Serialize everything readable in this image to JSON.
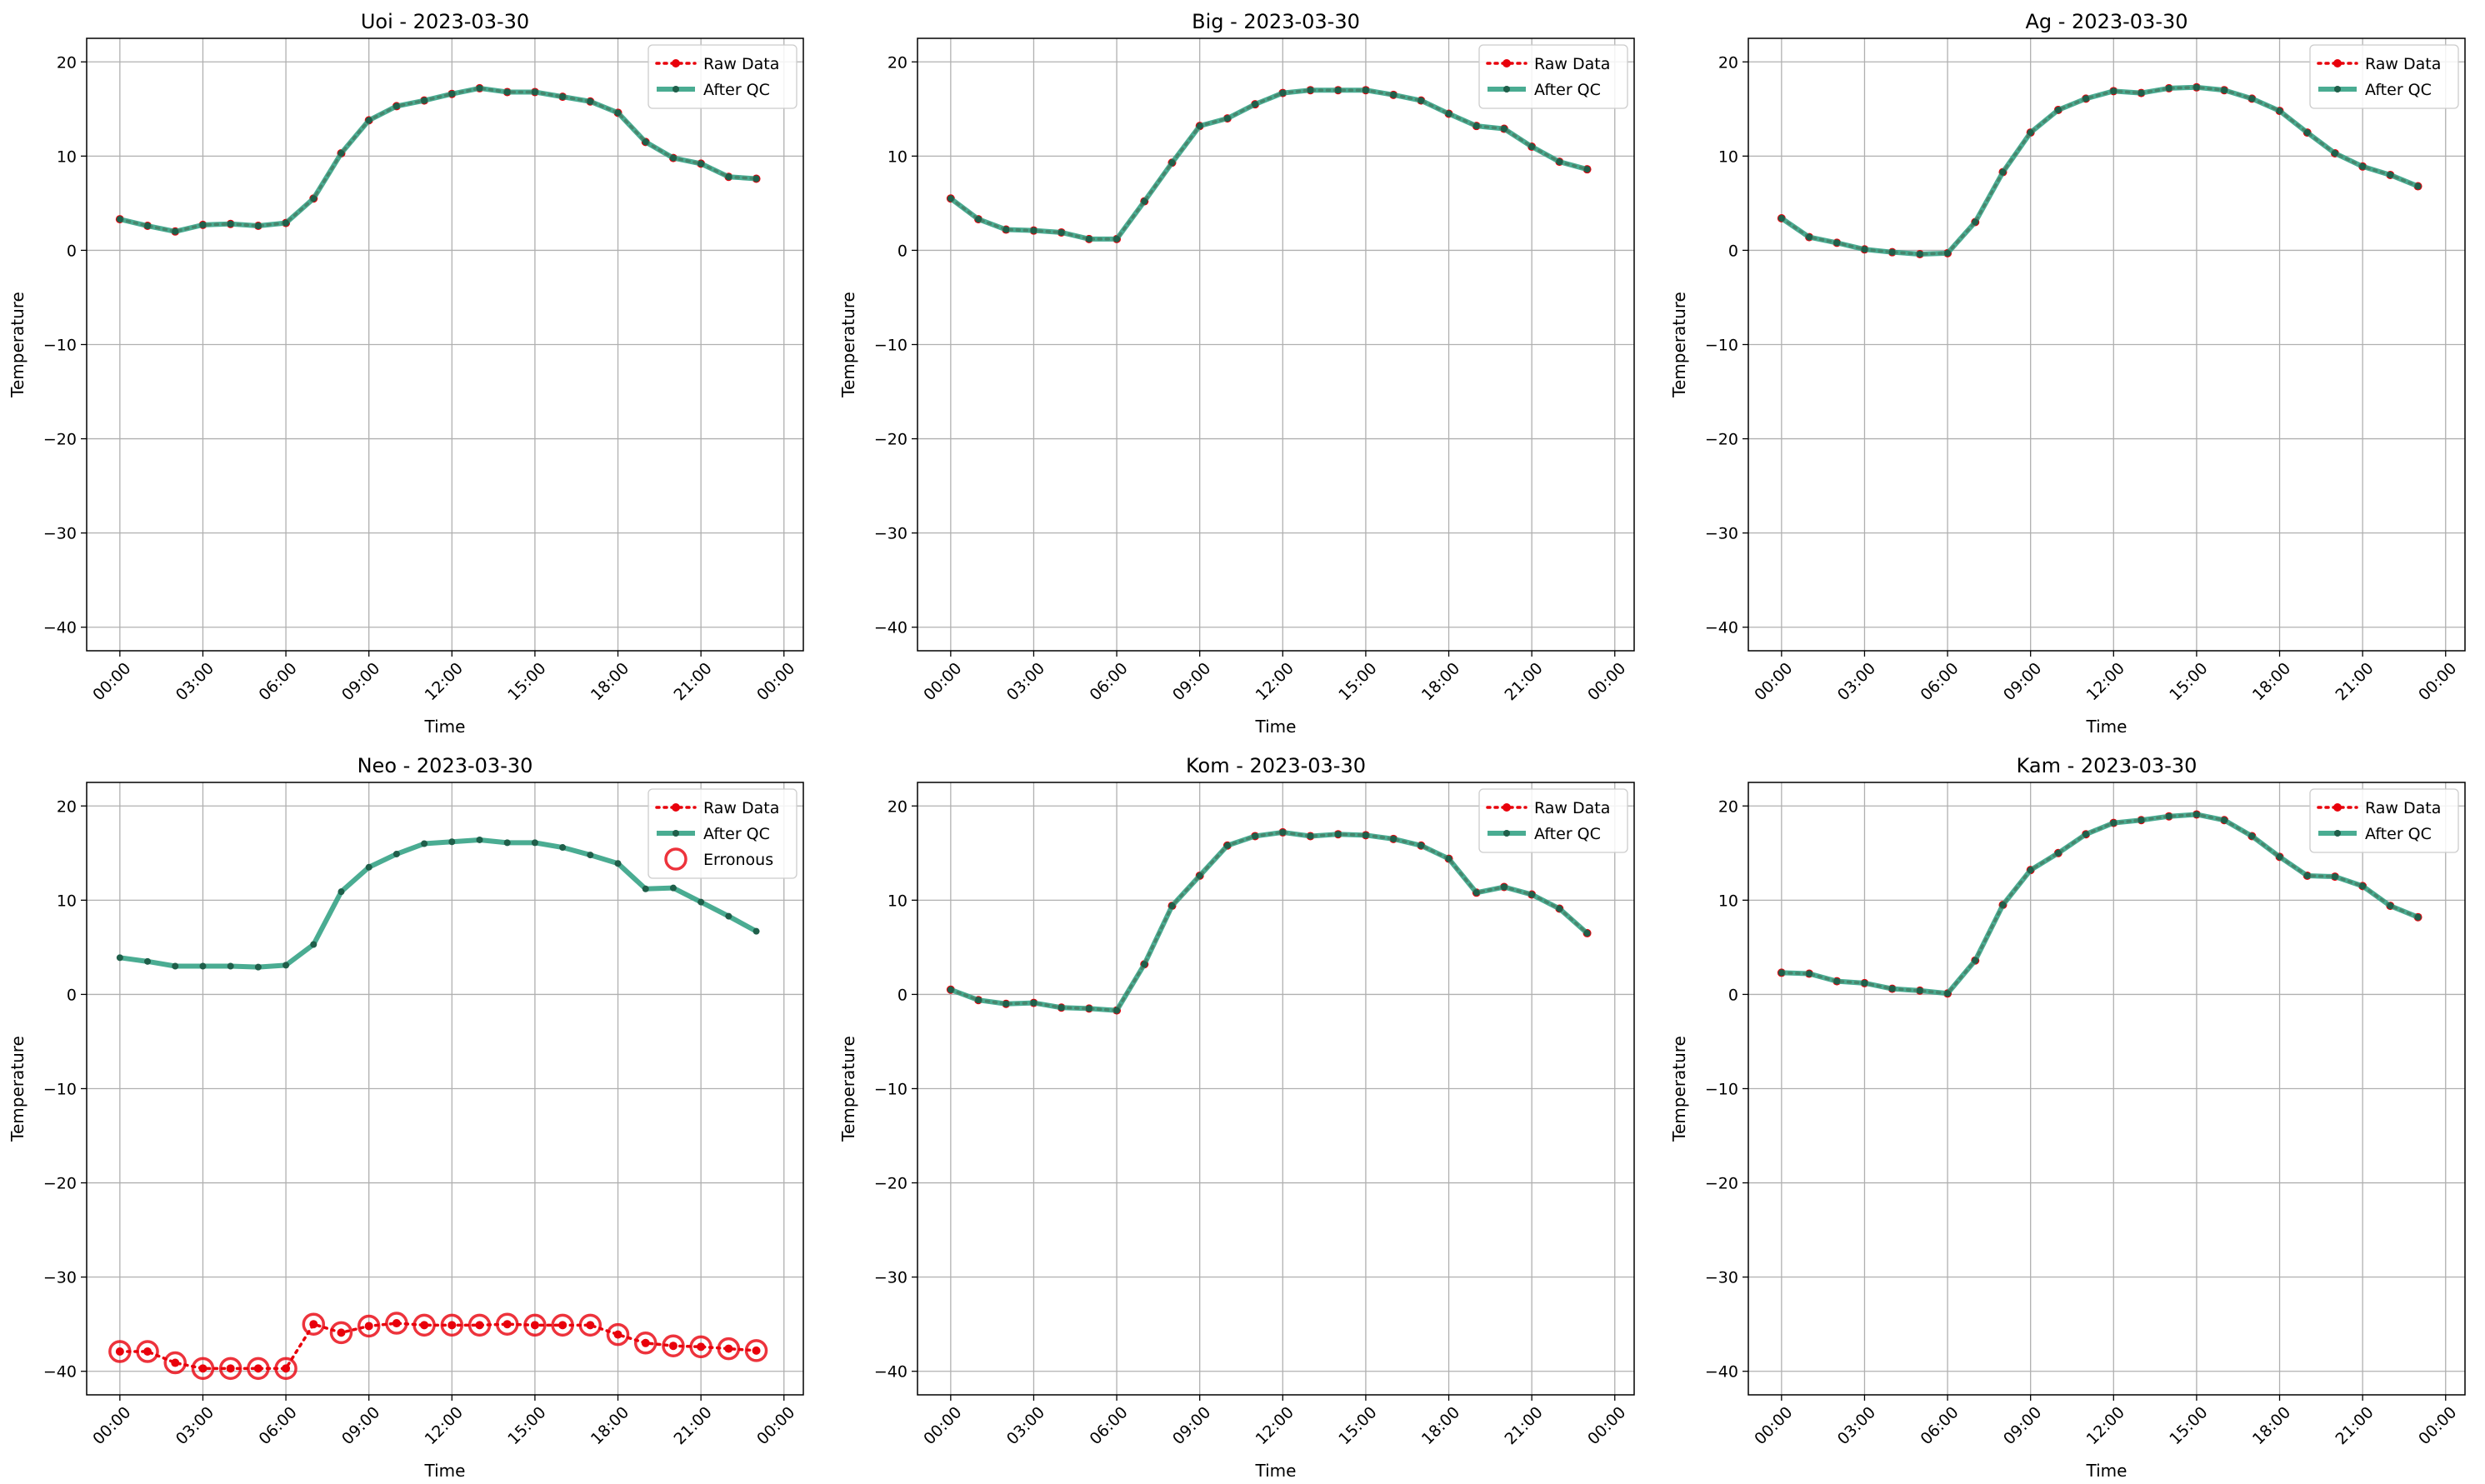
{
  "colors": {
    "raw": "#e8000b",
    "qc": "#2a9d7f",
    "qc_marker": "#1f5f4a",
    "erroneous": "#e8000b",
    "grid": "#b0b0b0"
  },
  "chart_data": [
    {
      "type": "line",
      "title": "Uoi - 2023-03-30",
      "xlabel": "Time",
      "ylabel": "Temperature",
      "x_hours": [
        0,
        1,
        2,
        3,
        4,
        5,
        6,
        7,
        8,
        9,
        10,
        11,
        12,
        13,
        14,
        15,
        16,
        17,
        18,
        19,
        20,
        21,
        22,
        23
      ],
      "xticks": [
        "00:00",
        "03:00",
        "06:00",
        "09:00",
        "12:00",
        "15:00",
        "18:00",
        "21:00",
        "00:00"
      ],
      "yticks": [
        "20",
        "10",
        "0",
        "−10",
        "−20",
        "−30",
        "−40"
      ],
      "ylim": [
        -42.5,
        22.5
      ],
      "grid": true,
      "legend_position": "top-right",
      "series": [
        {
          "name": "Raw Data",
          "style": "dotted",
          "values": [
            3.3,
            2.6,
            2.0,
            2.7,
            2.8,
            2.6,
            2.9,
            5.5,
            10.3,
            13.8,
            15.3,
            15.9,
            16.6,
            17.2,
            16.8,
            16.8,
            16.3,
            15.8,
            14.6,
            11.5,
            9.8,
            9.2,
            7.8,
            7.6
          ]
        },
        {
          "name": "After QC",
          "style": "solid",
          "values": [
            3.3,
            2.6,
            2.0,
            2.7,
            2.8,
            2.6,
            2.9,
            5.5,
            10.3,
            13.8,
            15.3,
            15.9,
            16.6,
            17.2,
            16.8,
            16.8,
            16.3,
            15.8,
            14.6,
            11.5,
            9.8,
            9.2,
            7.8,
            7.6
          ]
        }
      ]
    },
    {
      "type": "line",
      "title": "Big - 2023-03-30",
      "xlabel": "Time",
      "ylabel": "Temperature",
      "x_hours": [
        0,
        1,
        2,
        3,
        4,
        5,
        6,
        7,
        8,
        9,
        10,
        11,
        12,
        13,
        14,
        15,
        16,
        17,
        18,
        19,
        20,
        21,
        22,
        23
      ],
      "xticks": [
        "00:00",
        "03:00",
        "06:00",
        "09:00",
        "12:00",
        "15:00",
        "18:00",
        "21:00",
        "00:00"
      ],
      "yticks": [
        "20",
        "10",
        "0",
        "−10",
        "−20",
        "−30",
        "−40"
      ],
      "ylim": [
        -42.5,
        22.5
      ],
      "grid": true,
      "legend_position": "top-right",
      "series": [
        {
          "name": "Raw Data",
          "style": "dotted",
          "values": [
            5.5,
            3.3,
            2.2,
            2.1,
            1.9,
            1.2,
            1.2,
            5.2,
            9.3,
            13.2,
            14.0,
            15.5,
            16.7,
            17.0,
            17.0,
            17.0,
            16.5,
            15.9,
            14.5,
            13.2,
            12.9,
            11.0,
            9.4,
            8.6
          ]
        },
        {
          "name": "After QC",
          "style": "solid",
          "values": [
            5.5,
            3.3,
            2.2,
            2.1,
            1.9,
            1.2,
            1.2,
            5.2,
            9.3,
            13.2,
            14.0,
            15.5,
            16.7,
            17.0,
            17.0,
            17.0,
            16.5,
            15.9,
            14.5,
            13.2,
            12.9,
            11.0,
            9.4,
            8.6
          ]
        }
      ]
    },
    {
      "type": "line",
      "title": "Ag - 2023-03-30",
      "xlabel": "Time",
      "ylabel": "Temperature",
      "x_hours": [
        0,
        1,
        2,
        3,
        4,
        5,
        6,
        7,
        8,
        9,
        10,
        11,
        12,
        13,
        14,
        15,
        16,
        17,
        18,
        19,
        20,
        21,
        22,
        23
      ],
      "xticks": [
        "00:00",
        "03:00",
        "06:00",
        "09:00",
        "12:00",
        "15:00",
        "18:00",
        "21:00",
        "00:00"
      ],
      "yticks": [
        "20",
        "10",
        "0",
        "−10",
        "−20",
        "−30",
        "−40"
      ],
      "ylim": [
        -42.5,
        22.5
      ],
      "grid": true,
      "legend_position": "top-right",
      "series": [
        {
          "name": "Raw Data",
          "style": "dotted",
          "values": [
            3.4,
            1.4,
            0.8,
            0.1,
            -0.2,
            -0.4,
            -0.3,
            3.0,
            8.3,
            12.5,
            14.9,
            16.1,
            16.9,
            16.7,
            17.2,
            17.3,
            17.0,
            16.1,
            14.8,
            12.5,
            10.3,
            8.9,
            8.0,
            6.8
          ]
        },
        {
          "name": "After QC",
          "style": "solid",
          "values": [
            3.4,
            1.4,
            0.8,
            0.1,
            -0.2,
            -0.4,
            -0.3,
            3.0,
            8.3,
            12.5,
            14.9,
            16.1,
            16.9,
            16.7,
            17.2,
            17.3,
            17.0,
            16.1,
            14.8,
            12.5,
            10.3,
            8.9,
            8.0,
            6.8
          ]
        }
      ]
    },
    {
      "type": "line",
      "title": "Neo - 2023-03-30",
      "xlabel": "Time",
      "ylabel": "Temperature",
      "x_hours": [
        0,
        1,
        2,
        3,
        4,
        5,
        6,
        7,
        8,
        9,
        10,
        11,
        12,
        13,
        14,
        15,
        16,
        17,
        18,
        19,
        20,
        21,
        22,
        23
      ],
      "xticks": [
        "00:00",
        "03:00",
        "06:00",
        "09:00",
        "12:00",
        "15:00",
        "18:00",
        "21:00",
        "00:00"
      ],
      "yticks": [
        "20",
        "10",
        "0",
        "−10",
        "−20",
        "−30",
        "−40"
      ],
      "ylim": [
        -42.5,
        22.5
      ],
      "grid": true,
      "legend_position": "top-right",
      "series": [
        {
          "name": "Raw Data",
          "style": "dotted",
          "values": [
            -37.9,
            -37.9,
            -39.1,
            -39.7,
            -39.7,
            -39.7,
            -39.7,
            -35.0,
            -35.9,
            -35.2,
            -34.9,
            -35.1,
            -35.1,
            -35.1,
            -35.0,
            -35.1,
            -35.1,
            -35.1,
            -36.1,
            -37.0,
            -37.3,
            -37.4,
            -37.6,
            -37.8
          ]
        },
        {
          "name": "After QC",
          "style": "solid",
          "values": [
            3.9,
            3.5,
            3.0,
            3.0,
            3.0,
            2.9,
            3.1,
            5.3,
            10.9,
            13.5,
            14.9,
            16.0,
            16.2,
            16.4,
            16.1,
            16.1,
            15.6,
            14.8,
            13.9,
            11.2,
            11.3,
            9.8,
            8.3,
            6.7
          ]
        },
        {
          "name": "Erronous",
          "style": "circle",
          "values": [
            -37.9,
            -37.9,
            -39.1,
            -39.7,
            -39.7,
            -39.7,
            -39.7,
            -35.0,
            -35.9,
            -35.2,
            -34.9,
            -35.1,
            -35.1,
            -35.1,
            -35.0,
            -35.1,
            -35.1,
            -35.1,
            -36.1,
            -37.0,
            -37.3,
            -37.4,
            -37.6,
            -37.8
          ]
        }
      ]
    },
    {
      "type": "line",
      "title": "Kom - 2023-03-30",
      "xlabel": "Time",
      "ylabel": "Temperature",
      "x_hours": [
        0,
        1,
        2,
        3,
        4,
        5,
        6,
        7,
        8,
        9,
        10,
        11,
        12,
        13,
        14,
        15,
        16,
        17,
        18,
        19,
        20,
        21,
        22,
        23
      ],
      "xticks": [
        "00:00",
        "03:00",
        "06:00",
        "09:00",
        "12:00",
        "15:00",
        "18:00",
        "21:00",
        "00:00"
      ],
      "yticks": [
        "20",
        "10",
        "0",
        "−10",
        "−20",
        "−30",
        "−40"
      ],
      "ylim": [
        -42.5,
        22.5
      ],
      "grid": true,
      "legend_position": "top-right",
      "series": [
        {
          "name": "Raw Data",
          "style": "dotted",
          "values": [
            0.5,
            -0.6,
            -1.0,
            -0.9,
            -1.4,
            -1.5,
            -1.7,
            3.2,
            9.4,
            12.6,
            15.8,
            16.8,
            17.2,
            16.8,
            17.0,
            16.9,
            16.5,
            15.8,
            14.4,
            10.8,
            11.4,
            10.6,
            9.1,
            6.5
          ]
        },
        {
          "name": "After QC",
          "style": "solid",
          "values": [
            0.5,
            -0.6,
            -1.0,
            -0.9,
            -1.4,
            -1.5,
            -1.7,
            3.2,
            9.4,
            12.6,
            15.8,
            16.8,
            17.2,
            16.8,
            17.0,
            16.9,
            16.5,
            15.8,
            14.4,
            10.8,
            11.4,
            10.6,
            9.1,
            6.5
          ]
        }
      ]
    },
    {
      "type": "line",
      "title": "Kam - 2023-03-30",
      "xlabel": "Time",
      "ylabel": "Temperature",
      "x_hours": [
        0,
        1,
        2,
        3,
        4,
        5,
        6,
        7,
        8,
        9,
        10,
        11,
        12,
        13,
        14,
        15,
        16,
        17,
        18,
        19,
        20,
        21,
        22,
        23
      ],
      "xticks": [
        "00:00",
        "03:00",
        "06:00",
        "09:00",
        "12:00",
        "15:00",
        "18:00",
        "21:00",
        "00:00"
      ],
      "yticks": [
        "20",
        "10",
        "0",
        "−10",
        "−20",
        "−30",
        "−40"
      ],
      "ylim": [
        -42.5,
        22.5
      ],
      "grid": true,
      "legend_position": "top-right",
      "series": [
        {
          "name": "Raw Data",
          "style": "dotted",
          "values": [
            2.3,
            2.2,
            1.4,
            1.2,
            0.6,
            0.4,
            0.1,
            3.6,
            9.5,
            13.2,
            15.0,
            17.0,
            18.2,
            18.5,
            18.9,
            19.1,
            18.5,
            16.8,
            14.6,
            12.6,
            12.5,
            11.5,
            9.4,
            8.2
          ]
        },
        {
          "name": "After QC",
          "style": "solid",
          "values": [
            2.3,
            2.2,
            1.4,
            1.2,
            0.6,
            0.4,
            0.1,
            3.6,
            9.5,
            13.2,
            15.0,
            17.0,
            18.2,
            18.5,
            18.9,
            19.1,
            18.5,
            16.8,
            14.6,
            12.6,
            12.5,
            11.5,
            9.4,
            8.2
          ]
        }
      ]
    }
  ]
}
